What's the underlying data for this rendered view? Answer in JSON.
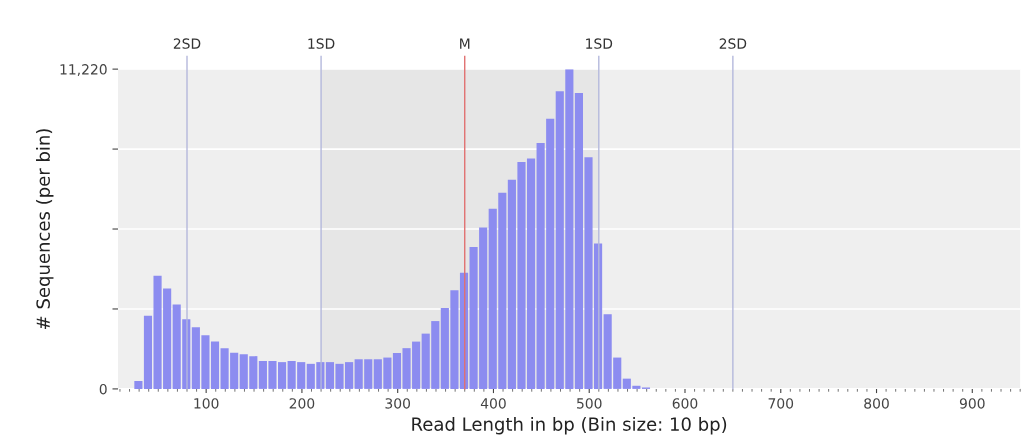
{
  "chart_data": {
    "type": "histogram",
    "xlabel": "Read Length in bp (Bin size: 10 bp)",
    "ylabel": "# Sequences (per bin)",
    "bins": [
      25,
      35,
      45,
      55,
      65,
      75,
      85,
      95,
      105,
      115,
      125,
      135,
      145,
      155,
      165,
      175,
      185,
      195,
      205,
      215,
      225,
      235,
      245,
      255,
      265,
      275,
      285,
      295,
      305,
      315,
      325,
      335,
      345,
      355,
      365,
      375,
      385,
      395,
      405,
      415,
      425,
      435,
      445,
      455,
      465,
      475,
      485,
      495,
      505,
      515,
      525,
      535,
      545,
      555,
      565
    ],
    "values": [
      280,
      2570,
      3970,
      3520,
      2960,
      2440,
      2160,
      1880,
      1660,
      1430,
      1270,
      1220,
      1150,
      980,
      980,
      940,
      980,
      940,
      880,
      940,
      940,
      880,
      940,
      1040,
      1040,
      1040,
      1100,
      1260,
      1430,
      1660,
      1940,
      2380,
      2840,
      3460,
      4080,
      4980,
      5660,
      6320,
      6880,
      7340,
      7960,
      8080,
      8630,
      9480,
      10440,
      11220,
      10380,
      8130,
      5100,
      2620,
      1100,
      360,
      110,
      50
    ],
    "color": "#8c8cf0",
    "xlim": [
      8,
      950
    ],
    "xticks": [
      100,
      200,
      300,
      400,
      500,
      600,
      700,
      800,
      900
    ],
    "ylim": [
      0,
      11220
    ],
    "yticks": [
      0,
      {
        "value": 2805,
        "label": null
      },
      {
        "value": 5610,
        "label": null
      },
      {
        "value": 8415,
        "label": null
      },
      {
        "value": 11220,
        "label": "11,220"
      }
    ],
    "grid": "y",
    "ref_lines": [
      {
        "axis": "x",
        "value": 80,
        "label": "2SD",
        "color": "#b4b8dc"
      },
      {
        "axis": "x",
        "value": 220,
        "label": "1SD",
        "color": "#b4b8dc"
      },
      {
        "axis": "x",
        "value": 370,
        "label": "M",
        "color": "#e07070"
      },
      {
        "axis": "x",
        "value": 510,
        "label": "1SD",
        "color": "#b4b8dc"
      },
      {
        "axis": "x",
        "value": 650,
        "label": "2SD",
        "color": "#b4b8dc"
      }
    ],
    "bands": [
      {
        "axis": "x",
        "from": 220,
        "to": 510,
        "color": "#e6e6e6"
      }
    ]
  }
}
